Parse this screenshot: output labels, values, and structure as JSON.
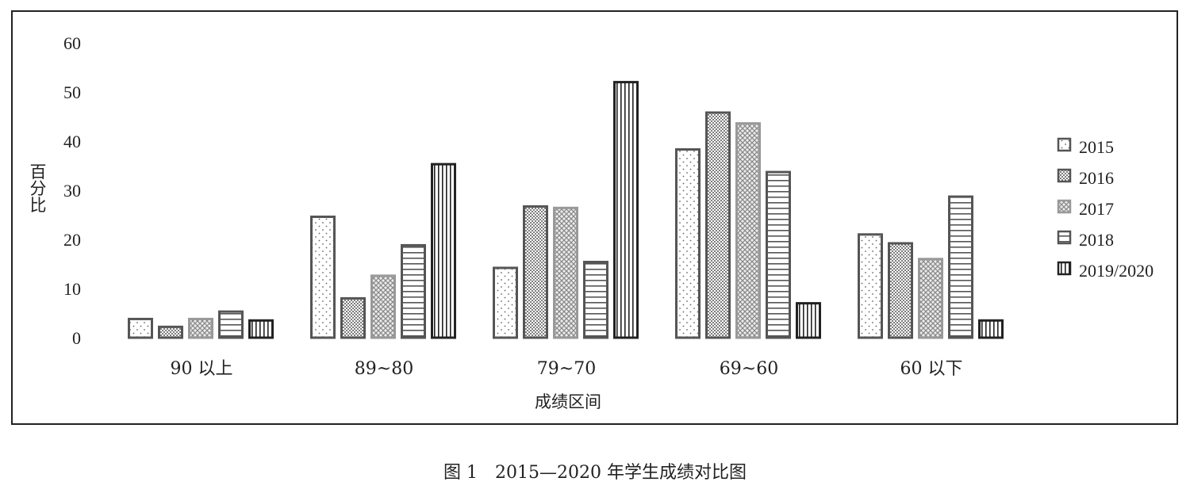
{
  "chart_data": {
    "type": "bar",
    "caption": "图 1　2015—2020 年学生成绩对比图",
    "xlabel": "成绩区间",
    "ylabel": "百分比",
    "ylim": [
      0,
      60
    ],
    "yticks": [
      0,
      10,
      20,
      30,
      40,
      50,
      60
    ],
    "grid": false,
    "legend_position": "right",
    "categories": [
      "90 以上",
      "89~80",
      "79~70",
      "69~60",
      "60 以下"
    ],
    "series": [
      {
        "name": "2015",
        "pattern": "sparse-dots",
        "color": "#555555",
        "values": [
          3.8,
          24.6,
          14.2,
          38.3,
          21.0
        ]
      },
      {
        "name": "2016",
        "pattern": "dense-dots",
        "color": "#555555",
        "values": [
          2.2,
          8.0,
          26.7,
          45.8,
          19.2
        ]
      },
      {
        "name": "2017",
        "pattern": "crosshatch",
        "color": "#999999",
        "values": [
          3.8,
          12.6,
          26.4,
          43.6,
          16.0
        ]
      },
      {
        "name": "2018",
        "pattern": "horizontal-lines",
        "color": "#555555",
        "values": [
          5.3,
          18.8,
          15.4,
          33.7,
          28.7
        ]
      },
      {
        "name": "2019/2020",
        "pattern": "vertical-lines",
        "color": "#222222",
        "values": [
          3.5,
          35.3,
          52.0,
          7.0,
          3.5
        ]
      }
    ]
  }
}
